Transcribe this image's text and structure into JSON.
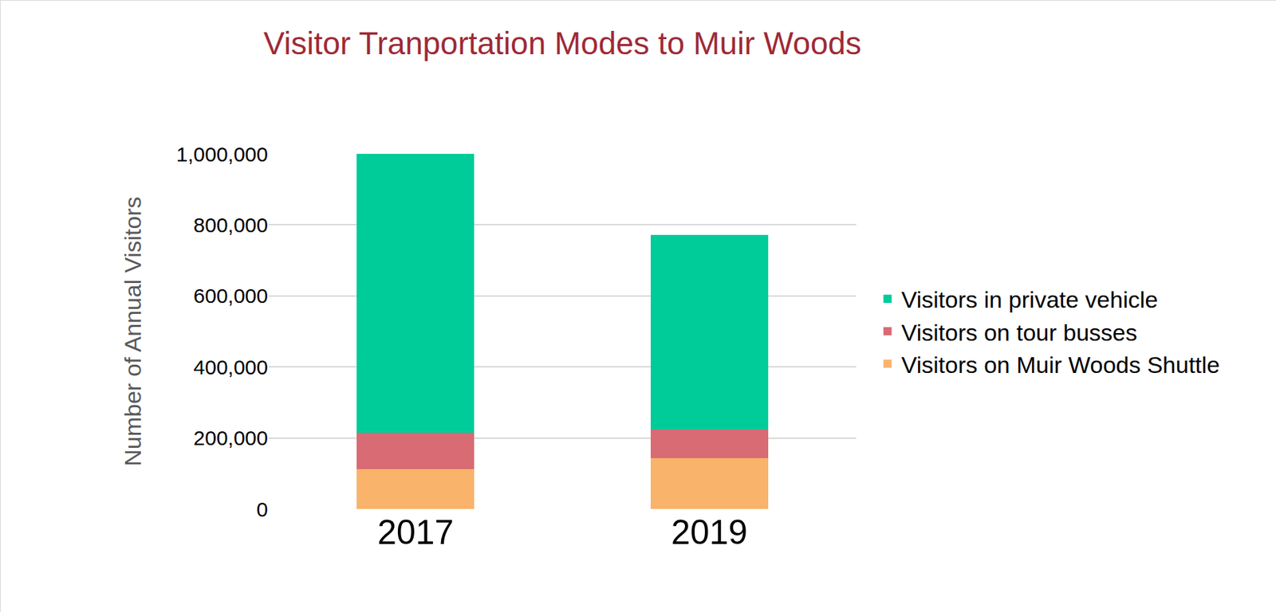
{
  "chart_data": {
    "type": "bar",
    "title": "Visitor Tranportation Modes to Muir Woods",
    "y_label": "Number of Annual Visitors",
    "categories": [
      "2017",
      "2019"
    ],
    "stacked": true,
    "series": [
      {
        "name": "Visitors on Muir Woods Shuttle",
        "color": "#f9b36b",
        "values": [
          112000,
          144000
        ]
      },
      {
        "name": "Visitors on tour busses",
        "color": "#d96b74",
        "values": [
          103000,
          80000
        ]
      },
      {
        "name": "Visitors in private vehicle",
        "color": "#00cc99",
        "values": [
          785000,
          547000
        ]
      }
    ],
    "ylim": [
      0,
      1000000
    ],
    "yticks": [
      0,
      {
        "value": 200000,
        "label": "200,000"
      },
      {
        "value": 400000,
        "label": "400,000"
      },
      {
        "value": 600000,
        "label": "600,000"
      },
      {
        "value": 800000,
        "label": "800,000"
      },
      {
        "value": 1000000,
        "label": "1,000,000"
      }
    ],
    "grid": true,
    "legend": "right"
  }
}
